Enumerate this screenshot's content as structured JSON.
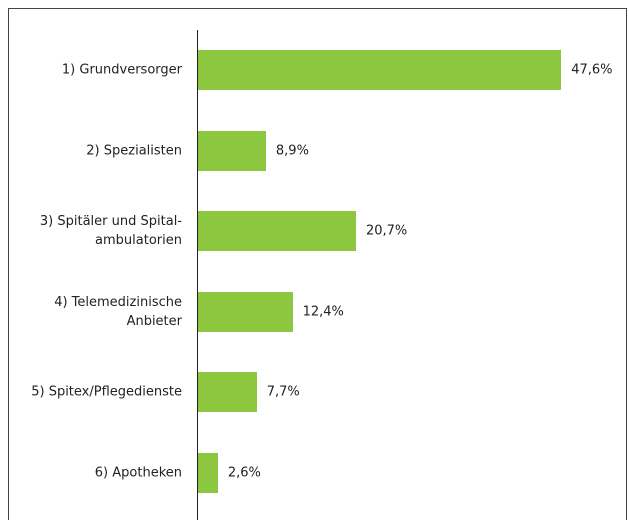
{
  "chart_data": {
    "type": "bar",
    "orientation": "horizontal",
    "categories": [
      "1) Grundversorger",
      "2) Spezialisten",
      "3) Spitäler und Spital-\nambulatorien",
      "4) Telemedizinische\nAnbieter",
      "5) Spitex/Pflegedienste",
      "6) Apotheken"
    ],
    "values": [
      47.6,
      8.9,
      20.7,
      12.4,
      7.7,
      2.6
    ],
    "value_labels": [
      "47,6%",
      "8,9%",
      "20,7%",
      "12,4%",
      "7,7%",
      "2,6%"
    ],
    "color": "#8dc63f",
    "xlim": [
      0,
      50
    ]
  }
}
